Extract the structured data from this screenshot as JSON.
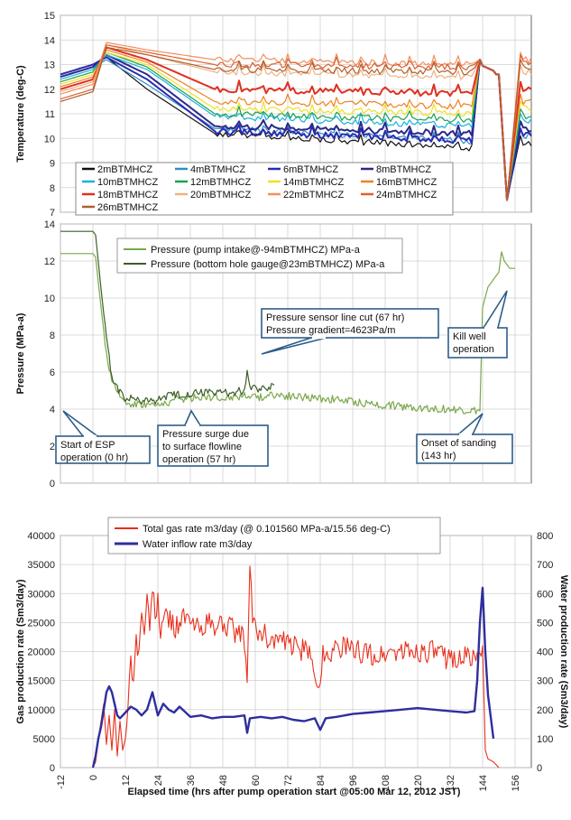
{
  "chart_data": [
    {
      "type": "line",
      "ylabel": "Temperature (deg-C)",
      "ylim": [
        7,
        15
      ],
      "xlim": [
        -12,
        162
      ],
      "yticks": [
        7,
        8,
        9,
        10,
        11,
        12,
        13,
        14,
        15
      ],
      "grid": true,
      "legend_position": "bottom-left",
      "series": [
        {
          "name": "2mBTMHCZ",
          "color": "#111111",
          "base": 12.6,
          "pk": 13.3,
          "t": 12.0,
          "p1": 10.2,
          "p2": 9.6
        },
        {
          "name": "4mBTMHCZ",
          "color": "#2f8fc0",
          "base": 12.5,
          "pk": 13.2,
          "t": 12.2,
          "p1": 10.4,
          "p2": 9.9
        },
        {
          "name": "6mBTMHCZ",
          "color": "#2b2bb5",
          "base": 12.6,
          "pk": 13.3,
          "t": 12.4,
          "p1": 10.3,
          "p2": 9.9
        },
        {
          "name": "8mBTMHCZ",
          "color": "#2a2a8a",
          "base": 12.5,
          "pk": 13.4,
          "t": 12.6,
          "p1": 10.5,
          "p2": 10.2
        },
        {
          "name": "10mBTMHCZ",
          "color": "#1ab0e0",
          "base": 12.4,
          "pk": 13.4,
          "t": 12.8,
          "p1": 10.9,
          "p2": 10.5
        },
        {
          "name": "12mBTMHCZ",
          "color": "#1aa050",
          "base": 12.3,
          "pk": 13.5,
          "t": 12.9,
          "p1": 11.0,
          "p2": 10.7
        },
        {
          "name": "14mBTMHCZ",
          "color": "#f0e020",
          "base": 12.2,
          "pk": 13.5,
          "t": 13.0,
          "p1": 11.2,
          "p2": 11.0
        },
        {
          "name": "16mBTMHCZ",
          "color": "#f08020",
          "base": 12.1,
          "pk": 13.6,
          "t": 13.1,
          "p1": 11.5,
          "p2": 11.3
        },
        {
          "name": "18mBTMHCZ",
          "color": "#e03020",
          "base": 12.0,
          "pk": 13.7,
          "t": 13.2,
          "p1": 12.0,
          "p2": 11.8
        },
        {
          "name": "20mBTMHCZ",
          "color": "#f0b080",
          "base": 11.9,
          "pk": 13.8,
          "t": 13.4,
          "p1": 12.7,
          "p2": 12.5
        },
        {
          "name": "22mBTMHCZ",
          "color": "#f09060",
          "base": 11.8,
          "pk": 13.9,
          "t": 13.6,
          "p1": 13.2,
          "p2": 13.0
        },
        {
          "name": "24mBTMHCZ",
          "color": "#e06030",
          "base": 11.6,
          "pk": 13.8,
          "t": 13.5,
          "p1": 13.0,
          "p2": 12.9
        },
        {
          "name": "26mBTMHCZ",
          "color": "#b06030",
          "base": 11.5,
          "pk": 13.7,
          "t": 13.4,
          "p1": 12.8,
          "p2": 12.7
        }
      ]
    },
    {
      "type": "line",
      "ylabel": "Pressure (MPa-a)",
      "ylim": [
        0,
        14
      ],
      "xlim": [
        -12,
        162
      ],
      "yticks": [
        0,
        2,
        4,
        6,
        8,
        10,
        12,
        14
      ],
      "grid": true,
      "legend_position": "top-center",
      "series": [
        {
          "name": "Pressure (pump intake@-94mBTMHCZ) MPa-a",
          "color": "#7aa84a",
          "points": [
            [
              -12,
              12.4
            ],
            [
              0,
              12.4
            ],
            [
              1,
              12.2
            ],
            [
              3,
              9.5
            ],
            [
              5,
              7.0
            ],
            [
              7,
              5.4
            ],
            [
              9,
              4.9
            ],
            [
              11,
              4.5
            ],
            [
              14,
              4.3
            ],
            [
              18,
              4.3
            ],
            [
              24,
              4.2
            ],
            [
              30,
              4.5
            ],
            [
              36,
              4.6
            ],
            [
              42,
              4.7
            ],
            [
              48,
              4.6
            ],
            [
              54,
              4.7
            ],
            [
              57,
              4.8
            ],
            [
              60,
              4.6
            ],
            [
              66,
              4.8
            ],
            [
              72,
              4.7
            ],
            [
              80,
              4.6
            ],
            [
              90,
              4.5
            ],
            [
              100,
              4.3
            ],
            [
              110,
              4.2
            ],
            [
              120,
              4.1
            ],
            [
              130,
              4.0
            ],
            [
              140,
              3.9
            ],
            [
              143,
              3.9
            ],
            [
              144,
              9.5
            ],
            [
              146,
              10.6
            ],
            [
              148,
              11.0
            ],
            [
              150,
              11.4
            ],
            [
              151,
              12.5
            ],
            [
              152,
              12.0
            ],
            [
              154,
              11.6
            ],
            [
              156,
              11.6
            ]
          ]
        },
        {
          "name": "Pressure (bottom hole gauge@23mBTMHCZ) MPa-a",
          "color": "#3d5e26",
          "points": [
            [
              -12,
              13.6
            ],
            [
              0,
              13.6
            ],
            [
              1,
              13.4
            ],
            [
              3,
              10.5
            ],
            [
              5,
              7.8
            ],
            [
              7,
              5.8
            ],
            [
              9,
              5.1
            ],
            [
              12,
              4.6
            ],
            [
              16,
              4.5
            ],
            [
              22,
              4.4
            ],
            [
              28,
              4.7
            ],
            [
              34,
              4.8
            ],
            [
              40,
              4.9
            ],
            [
              46,
              4.9
            ],
            [
              52,
              4.9
            ],
            [
              56,
              5.0
            ],
            [
              57,
              6.0
            ],
            [
              58,
              5.1
            ],
            [
              62,
              5.1
            ],
            [
              67,
              5.3
            ]
          ]
        }
      ],
      "annotations": [
        {
          "lines": [
            "Start of ESP",
            "operation (0 hr)"
          ]
        },
        {
          "lines": [
            "Pressure surge due",
            "to surface flowline",
            "operation (57 hr)"
          ]
        },
        {
          "lines": [
            "Pressure sensor line cut (67 hr)",
            "Pressure gradient=4623Pa/m"
          ]
        },
        {
          "lines": [
            "Kill well",
            "operation"
          ]
        },
        {
          "lines": [
            "Onset of sanding",
            "(143 hr)"
          ]
        }
      ]
    },
    {
      "type": "line",
      "xlabel": "Elapsed time (hrs after pump operation start @05:00 Mar 12, 2012 JST)",
      "ylabel": "Gas production rate (Sm3/day)",
      "ylabel_right": "Water production rate (Sm3/day)",
      "xlim": [
        -12,
        162
      ],
      "xticks": [
        -12,
        0,
        12,
        24,
        36,
        48,
        60,
        72,
        84,
        96,
        108,
        120,
        132,
        144,
        156
      ],
      "ylim": [
        0,
        40000
      ],
      "ylim_right": [
        0,
        800
      ],
      "yticks": [
        0,
        5000,
        10000,
        15000,
        20000,
        25000,
        30000,
        35000,
        40000
      ],
      "yticks_right": [
        0,
        100,
        200,
        300,
        400,
        500,
        600,
        700,
        800
      ],
      "grid": true,
      "legend_position": "top-center",
      "series": [
        {
          "name": "Total gas rate m3/day  (@ 0.101560 MPa-a/15.56 deg-C)",
          "color": "#e8301c",
          "axis": "left",
          "points": [
            [
              0,
              0
            ],
            [
              1,
              1000
            ],
            [
              2,
              5000
            ],
            [
              3,
              8000
            ],
            [
              4,
              11000
            ],
            [
              5,
              4000
            ],
            [
              6,
              9000
            ],
            [
              7,
              3000
            ],
            [
              8,
              10000
            ],
            [
              9,
              2000
            ],
            [
              10,
              8000
            ],
            [
              11,
              3000
            ],
            [
              12,
              5000
            ],
            [
              13,
              12000
            ],
            [
              14,
              18000
            ],
            [
              15,
              16000
            ],
            [
              16,
              22000
            ],
            [
              17,
              20000
            ],
            [
              18,
              26000
            ],
            [
              19,
              24000
            ],
            [
              20,
              29000
            ],
            [
              21,
              23000
            ],
            [
              22,
              32000
            ],
            [
              23,
              25000
            ],
            [
              24,
              30000
            ],
            [
              25,
              22000
            ],
            [
              27,
              27000
            ],
            [
              30,
              24000
            ],
            [
              33,
              26000
            ],
            [
              36,
              25000
            ],
            [
              39,
              24000
            ],
            [
              42,
              25000
            ],
            [
              45,
              24000
            ],
            [
              48,
              25000
            ],
            [
              51,
              24000
            ],
            [
              54,
              23000
            ],
            [
              56,
              22000
            ],
            [
              57,
              15000
            ],
            [
              58,
              34000
            ],
            [
              59,
              26000
            ],
            [
              60,
              24000
            ],
            [
              63,
              23000
            ],
            [
              66,
              22000
            ],
            [
              69,
              22000
            ],
            [
              72,
              21000
            ],
            [
              75,
              21000
            ],
            [
              78,
              20000
            ],
            [
              81,
              19000
            ],
            [
              84,
              13000
            ],
            [
              85,
              20000
            ],
            [
              88,
              20000
            ],
            [
              92,
              21000
            ],
            [
              96,
              20000
            ],
            [
              100,
              20000
            ],
            [
              105,
              19000
            ],
            [
              110,
              20000
            ],
            [
              115,
              20000
            ],
            [
              120,
              20000
            ],
            [
              125,
              20000
            ],
            [
              130,
              19000
            ],
            [
              135,
              19000
            ],
            [
              140,
              19000
            ],
            [
              142,
              18500
            ],
            [
              143,
              21000
            ],
            [
              144,
              21000
            ],
            [
              145,
              3000
            ],
            [
              146,
              1500
            ],
            [
              148,
              1000
            ],
            [
              150,
              0
            ]
          ]
        },
        {
          "name": "Water inflow rate m3/day",
          "color": "#2e2e9e",
          "axis": "right",
          "points": [
            [
              0,
              0
            ],
            [
              1,
              40
            ],
            [
              2,
              100
            ],
            [
              3,
              140
            ],
            [
              4,
              200
            ],
            [
              5,
              260
            ],
            [
              6,
              280
            ],
            [
              7,
              260
            ],
            [
              8,
              220
            ],
            [
              9,
              180
            ],
            [
              10,
              170
            ],
            [
              12,
              190
            ],
            [
              14,
              210
            ],
            [
              16,
              200
            ],
            [
              18,
              180
            ],
            [
              20,
              200
            ],
            [
              22,
              260
            ],
            [
              24,
              180
            ],
            [
              26,
              220
            ],
            [
              28,
              200
            ],
            [
              30,
              190
            ],
            [
              32,
              210
            ],
            [
              36,
              175
            ],
            [
              40,
              180
            ],
            [
              44,
              170
            ],
            [
              48,
              175
            ],
            [
              52,
              175
            ],
            [
              56,
              180
            ],
            [
              57,
              120
            ],
            [
              58,
              170
            ],
            [
              62,
              175
            ],
            [
              66,
              170
            ],
            [
              70,
              175
            ],
            [
              74,
              165
            ],
            [
              78,
              160
            ],
            [
              82,
              170
            ],
            [
              84,
              130
            ],
            [
              86,
              170
            ],
            [
              90,
              175
            ],
            [
              96,
              185
            ],
            [
              102,
              190
            ],
            [
              108,
              195
            ],
            [
              114,
              200
            ],
            [
              120,
              205
            ],
            [
              126,
              200
            ],
            [
              132,
              195
            ],
            [
              138,
              190
            ],
            [
              141,
              195
            ],
            [
              142,
              300
            ],
            [
              143,
              500
            ],
            [
              144,
              620
            ],
            [
              145,
              400
            ],
            [
              146,
              250
            ],
            [
              148,
              100
            ]
          ]
        }
      ]
    }
  ]
}
